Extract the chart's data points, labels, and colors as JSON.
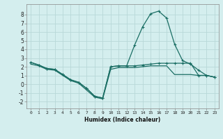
{
  "xlabel": "Humidex (Indice chaleur)",
  "ylabel": "",
  "background_color": "#d4eeee",
  "grid_color": "#b8d8d8",
  "line_color": "#1a6e64",
  "xlim": [
    -0.5,
    23.5
  ],
  "ylim": [
    -2.8,
    9.2
  ],
  "xticks": [
    0,
    1,
    2,
    3,
    4,
    5,
    6,
    7,
    8,
    9,
    10,
    11,
    12,
    13,
    14,
    15,
    16,
    17,
    18,
    19,
    20,
    21,
    22,
    23
  ],
  "yticks": [
    -2,
    -1,
    0,
    1,
    2,
    3,
    4,
    5,
    6,
    7,
    8
  ],
  "curve1_x": [
    0,
    1,
    2,
    3,
    4,
    5,
    6,
    7,
    8,
    9,
    10,
    11,
    12,
    13,
    14,
    15,
    16,
    17,
    18,
    19,
    20,
    21,
    22,
    23
  ],
  "curve1_y": [
    2.5,
    2.2,
    1.8,
    1.7,
    1.1,
    0.5,
    0.2,
    -0.5,
    -1.4,
    -1.6,
    2.0,
    2.1,
    2.1,
    4.5,
    6.6,
    8.1,
    8.4,
    7.6,
    4.6,
    2.7,
    2.3,
    1.6,
    1.0,
    0.8
  ],
  "curve2_x": [
    0,
    1,
    2,
    3,
    4,
    5,
    6,
    7,
    8,
    9,
    10,
    11,
    12,
    13,
    14,
    15,
    16,
    17,
    18,
    19,
    20,
    21,
    22,
    23
  ],
  "curve2_y": [
    2.5,
    2.2,
    1.8,
    1.7,
    1.1,
    0.5,
    0.2,
    -0.5,
    -1.4,
    -1.6,
    2.0,
    2.1,
    2.1,
    2.1,
    2.2,
    2.3,
    2.4,
    2.4,
    2.4,
    2.4,
    2.4,
    1.0,
    1.0,
    0.8
  ],
  "curve3_x": [
    0,
    1,
    2,
    3,
    4,
    5,
    6,
    7,
    8,
    9,
    10,
    11,
    12,
    13,
    14,
    15,
    16,
    17,
    18,
    19,
    20,
    21,
    22,
    23
  ],
  "curve3_y": [
    2.3,
    2.1,
    1.7,
    1.6,
    1.0,
    0.4,
    0.1,
    -0.7,
    -1.5,
    -1.7,
    1.7,
    1.9,
    1.9,
    1.9,
    2.0,
    2.1,
    2.1,
    2.1,
    1.1,
    1.1,
    1.1,
    1.0,
    1.0,
    0.8
  ]
}
